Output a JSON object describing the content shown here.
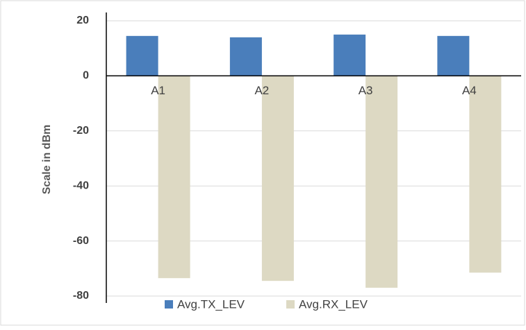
{
  "chart_data": {
    "type": "bar",
    "y_label": "Scale in dBm",
    "categories": [
      "A1",
      "A2",
      "A3",
      "A4"
    ],
    "series": [
      {
        "name": "Avg.TX_LEV",
        "color": "#4a7ebb",
        "values": [
          14.5,
          14,
          15,
          14.5
        ]
      },
      {
        "name": "Avg.RX_LEV",
        "color": "#ddd9c3",
        "values": [
          -73.5,
          -74.5,
          -77,
          -71.5
        ]
      }
    ],
    "ylim": [
      -80,
      20
    ],
    "yticks": [
      -80,
      -60,
      -40,
      -20,
      0,
      20
    ],
    "grid": true,
    "legend": "bottom"
  }
}
